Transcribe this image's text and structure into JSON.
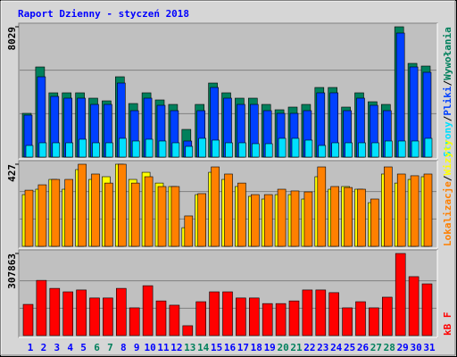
{
  "chart_data": [
    {
      "type": "bar",
      "title": "Raport Dzienny -  styczeń 2018",
      "title_color": "#0000ff",
      "ylim": [
        0,
        8029
      ],
      "yticks": [
        8029
      ],
      "legend_separator": "/",
      "series": [
        {
          "name": "Wywołania",
          "color": "#00805c",
          "values": [
            2695,
            5554,
            3960,
            3960,
            3960,
            3630,
            3465,
            4949,
            3300,
            3960,
            3520,
            3245,
            1705,
            3245,
            4564,
            3960,
            3630,
            3630,
            3245,
            2915,
            3080,
            3245,
            4289,
            4289,
            3080,
            3960,
            3410,
            3245,
            8029,
            5774,
            5609
          ]
        },
        {
          "name": "Pliki",
          "color": "#0040ff",
          "values": [
            2585,
            4949,
            3740,
            3630,
            3630,
            3245,
            3245,
            4564,
            2860,
            3630,
            3190,
            2860,
            990,
            2860,
            4289,
            3630,
            3245,
            3245,
            2860,
            2695,
            2695,
            2860,
            3960,
            3960,
            2860,
            3630,
            3190,
            2860,
            7644,
            5554,
            5224
          ]
        },
        {
          "name": "Strony",
          "color": "#00e0ff",
          "values": [
            715,
            880,
            880,
            880,
            1100,
            880,
            880,
            1155,
            990,
            1100,
            990,
            880,
            660,
            1155,
            1045,
            880,
            880,
            825,
            825,
            1155,
            1155,
            1045,
            715,
            880,
            880,
            880,
            880,
            990,
            990,
            990,
            1155
          ]
        }
      ]
    },
    {
      "type": "bar",
      "ylim": [
        0,
        427
      ],
      "yticks": [
        427
      ],
      "legend_separator": "/",
      "series": [
        {
          "name": "Wizyty",
          "color": "#ffff00",
          "values": [
            269,
            297,
            348,
            297,
            399,
            348,
            362,
            427,
            348,
            385,
            329,
            311,
            97,
            269,
            385,
            348,
            311,
            260,
            246,
            269,
            269,
            246,
            362,
            297,
            311,
            297,
            227,
            376,
            329,
            348,
            362
          ]
        },
        {
          "name": "Lokalizacje",
          "color": "#ff8000",
          "values": [
            292,
            320,
            348,
            348,
            427,
            376,
            329,
            427,
            329,
            362,
            311,
            311,
            158,
            274,
            413,
            376,
            329,
            269,
            269,
            297,
            288,
            283,
            413,
            311,
            306,
            297,
            246,
            413,
            376,
            367,
            376
          ]
        }
      ]
    },
    {
      "type": "bar",
      "ylim": [
        0,
        307863
      ],
      "yticks": [
        307863
      ],
      "categories": [
        "1",
        "2",
        "3",
        "4",
        "5",
        "6",
        "7",
        "8",
        "9",
        "10",
        "11",
        "12",
        "13",
        "14",
        "15",
        "16",
        "17",
        "18",
        "19",
        "20",
        "21",
        "22",
        "23",
        "24",
        "25",
        "26",
        "27",
        "28",
        "29",
        "30",
        "31"
      ],
      "label_colors": [
        "#0000ff",
        "#0000ff",
        "#0000ff",
        "#0000ff",
        "#0000ff",
        "#00805c",
        "#00805c",
        "#0000ff",
        "#0000ff",
        "#0000ff",
        "#0000ff",
        "#0000ff",
        "#00805c",
        "#00805c",
        "#0000ff",
        "#0000ff",
        "#0000ff",
        "#0000ff",
        "#0000ff",
        "#00805c",
        "#00805c",
        "#0000ff",
        "#0000ff",
        "#0000ff",
        "#0000ff",
        "#0000ff",
        "#00805c",
        "#00805c",
        "#0000ff",
        "#0000ff",
        "#0000ff"
      ],
      "series": [
        {
          "name": "kB F",
          "color": "#ff0000",
          "values": [
            117000,
            207000,
            177000,
            164000,
            171000,
            141000,
            141000,
            177000,
            104000,
            187000,
            130000,
            114000,
            37000,
            127000,
            164000,
            164000,
            141000,
            141000,
            120000,
            120000,
            130000,
            171000,
            171000,
            161000,
            104000,
            127000,
            104000,
            144000,
            307863,
            221000,
            194000
          ]
        }
      ]
    }
  ]
}
